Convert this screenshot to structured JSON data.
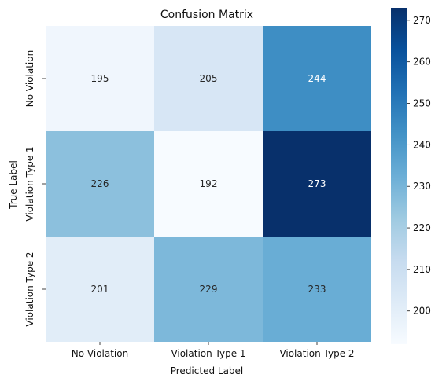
{
  "chart_data": {
    "type": "heatmap",
    "title": "Confusion Matrix",
    "xlabel": "Predicted Label",
    "ylabel": "True Label",
    "x_categories": [
      "No Violation",
      "Violation Type 1",
      "Violation Type 2"
    ],
    "y_categories": [
      "No Violation",
      "Violation Type 1",
      "Violation Type 2"
    ],
    "values": [
      [
        195,
        205,
        244
      ],
      [
        226,
        192,
        273
      ],
      [
        201,
        229,
        233
      ]
    ],
    "colormap": "Blues",
    "colorbar": {
      "range": [
        192,
        273
      ],
      "ticks": [
        200,
        210,
        220,
        230,
        240,
        250,
        260,
        270
      ]
    }
  }
}
